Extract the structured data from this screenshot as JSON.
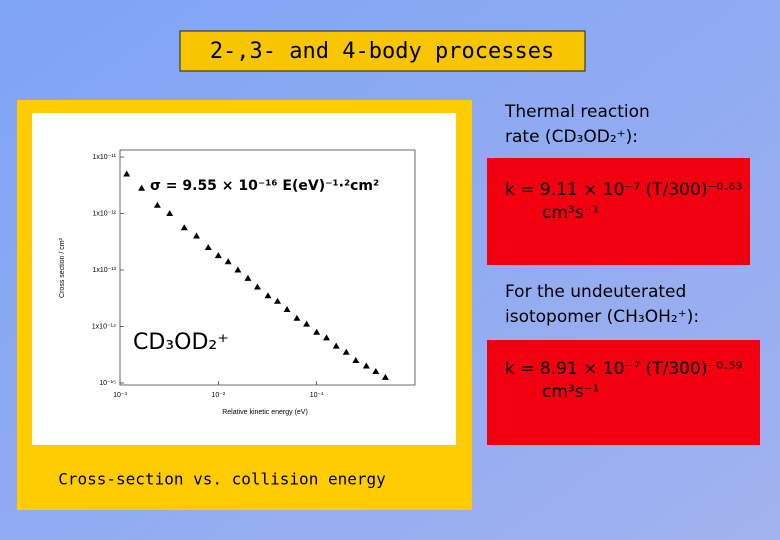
{
  "title": "2-,3- and 4-body processes",
  "chart_data": {
    "type": "scatter",
    "annotations": [
      "σ = 9.55 × 10⁻¹⁶ E(eV)⁻¹·²cm²",
      "CD₃OD₂⁺"
    ],
    "xlabel": "Relative kinetic energy (eV)",
    "ylabel": "Cross section / cm²",
    "log_x": true,
    "log_y": true,
    "color": "#000000",
    "xlim": [
      0.001,
      1
    ],
    "xticks": [
      {
        "value": 0.001,
        "label": "10⁻³"
      },
      {
        "value": 0.01,
        "label": "10⁻²"
      },
      {
        "value": 0.1,
        "label": "10⁻¹"
      }
    ],
    "ylim": [
      1e-15,
      1e-11
    ],
    "yticks": [
      {
        "value": 1e-11,
        "label": "1x10⁻¹¹"
      },
      {
        "value": 1e-12,
        "label": "1x10⁻¹²"
      },
      {
        "value": 1e-13,
        "label": "1x10⁻¹³"
      },
      {
        "value": 1e-14,
        "label": "1x10⁻¹⁴"
      },
      {
        "value": 1e-15,
        "label": "10⁻¹⁵"
      }
    ],
    "x": [
      0.00117,
      0.00166,
      0.0024,
      0.0032,
      0.0045,
      0.006,
      0.0079,
      0.01,
      0.0126,
      0.0158,
      0.02,
      0.025,
      0.032,
      0.04,
      0.05,
      0.063,
      0.079,
      0.1,
      0.126,
      0.158,
      0.2,
      0.25,
      0.32,
      0.4,
      0.5
    ],
    "values": [
      5e-12,
      2.8e-12,
      1.4e-12,
      1e-12,
      5.6e-13,
      4e-13,
      2.5e-13,
      1.8e-13,
      1.4e-13,
      1e-13,
      7.1e-14,
      5e-14,
      3.5e-14,
      2.8e-14,
      2e-14,
      1.4e-14,
      1.1e-14,
      7.9e-15,
      6.3e-15,
      4.5e-15,
      3.5e-15,
      2.5e-15,
      2e-15,
      1.6e-15,
      1.26e-15
    ]
  },
  "caption": "Cross-section vs. collision energy",
  "panels": [
    {
      "heading": [
        "Thermal reaction",
        "rate (CD₃OD₂⁺):"
      ],
      "formula": "k = 9.11 × 10⁻⁷ (T/300)⁻⁰·⁶³",
      "unit": "cm³s⁻¹"
    },
    {
      "heading": [
        "For the undeuterated",
        "isotopomer (CH₃OH₂⁺):"
      ],
      "formula": "k = 8.91 × 10⁻⁷ (T/300)⁻⁰·⁵⁹",
      "unit": "cm³s⁻¹"
    }
  ]
}
